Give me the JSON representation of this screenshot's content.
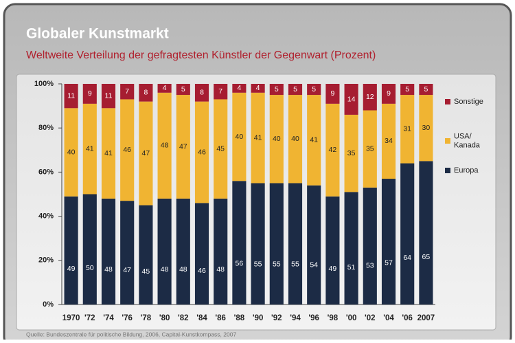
{
  "chart_data": {
    "type": "stacked_bar",
    "title": "Globaler Kunstmarkt",
    "subtitle": "Weltweite Verteilung der gefragtesten Künstler der Gegenwart (Prozent)",
    "source": "Quelle: Bundeszentrale für politische Bildung, 2006, Capital-Kunstkompass, 2007",
    "categories": [
      "1970",
      "'72",
      "'74",
      "'76",
      "'78",
      "'80",
      "'82",
      "'84",
      "'86",
      "'88",
      "'90",
      "'92",
      "'94",
      "'96",
      "'98",
      "'00",
      "'02",
      "'04",
      "'06",
      "2007"
    ],
    "series": [
      {
        "name": "Europa",
        "color": "#1c2b45",
        "values": [
          49,
          50,
          48,
          47,
          45,
          48,
          48,
          46,
          48,
          56,
          55,
          55,
          55,
          54,
          49,
          51,
          53,
          57,
          64,
          65
        ]
      },
      {
        "name": "USA/ Kanada",
        "color": "#f0b432",
        "values": [
          40,
          41,
          41,
          46,
          47,
          48,
          47,
          46,
          45,
          40,
          41,
          40,
          40,
          41,
          42,
          35,
          35,
          34,
          31,
          30
        ]
      },
      {
        "name": "Sonstige",
        "color": "#a61d31",
        "values": [
          11,
          9,
          11,
          7,
          8,
          4,
          5,
          8,
          7,
          4,
          4,
          5,
          5,
          5,
          9,
          14,
          12,
          9,
          5,
          5
        ]
      }
    ],
    "ylim": [
      0,
      100
    ],
    "yticks": [
      {
        "value": 0,
        "label": "0%"
      },
      {
        "value": 20,
        "label": "20%"
      },
      {
        "value": 40,
        "label": "40%"
      },
      {
        "value": 60,
        "label": "60%"
      },
      {
        "value": 80,
        "label": "80%"
      },
      {
        "value": 100,
        "label": "100%"
      }
    ],
    "legend": "right"
  }
}
